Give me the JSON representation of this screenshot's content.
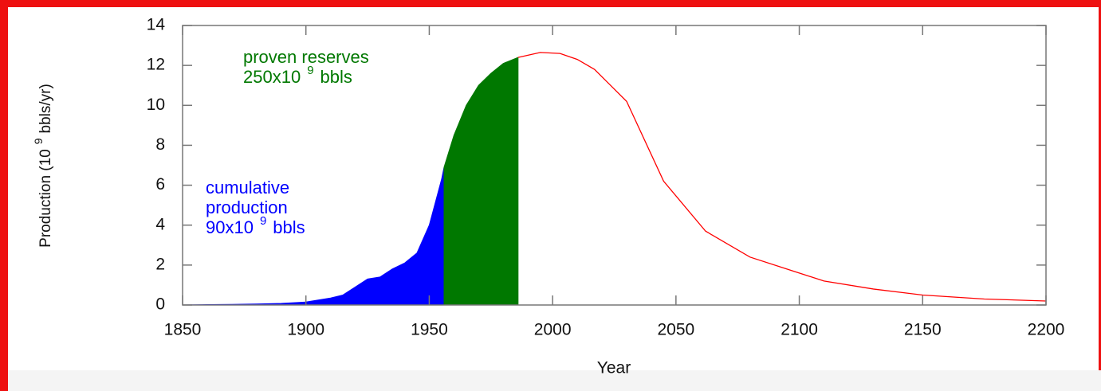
{
  "chart_data": {
    "type": "area",
    "xlabel": "Year",
    "ylabel": {
      "text": "Production (10",
      "superscript": "9",
      "suffix": "bbls/yr)"
    },
    "xlim": [
      1850,
      2200
    ],
    "xticks": [
      1850,
      1900,
      1950,
      2000,
      2050,
      2100,
      2150,
      2200
    ],
    "ylim": [
      0,
      14
    ],
    "yticks": [
      0,
      2,
      4,
      6,
      8,
      10,
      12,
      14
    ],
    "series": [
      {
        "color": "#0000ff",
        "fill": true,
        "x": [
          1850,
          1860,
          1870,
          1880,
          1890,
          1900,
          1905,
          1910,
          1915,
          1920,
          1925,
          1930,
          1935,
          1940,
          1945,
          1950,
          1955,
          1956
        ],
        "values": [
          0,
          0.02,
          0.03,
          0.05,
          0.08,
          0.15,
          0.25,
          0.35,
          0.5,
          0.9,
          1.3,
          1.4,
          1.8,
          2.1,
          2.6,
          4.0,
          6.3,
          6.9
        ]
      },
      {
        "color": "#007800",
        "fill": true,
        "x": [
          1956,
          1960,
          1965,
          1970,
          1975,
          1980,
          1986
        ],
        "values": [
          6.9,
          8.5,
          10.0,
          11.0,
          11.6,
          12.1,
          12.4
        ]
      },
      {
        "color": "#ff0000",
        "fill": false,
        "x": [
          1986,
          1995,
          2003,
          2010,
          2017,
          2030,
          2045,
          2062,
          2080,
          2095,
          2110,
          2130,
          2150,
          2175,
          2200
        ],
        "values": [
          12.4,
          12.65,
          12.6,
          12.3,
          11.8,
          10.2,
          6.2,
          3.7,
          2.4,
          1.8,
          1.2,
          0.8,
          0.5,
          0.3,
          0.2
        ]
      }
    ],
    "annotations": [
      {
        "color": "#0000ff",
        "lines": [
          "cumulative",
          "production",
          "90x10"
        ],
        "superscript": "9",
        "suffix": "bbls"
      },
      {
        "color": "#007800",
        "lines": [
          "proven reserves",
          "250x10"
        ],
        "superscript": "9",
        "suffix": "bbls"
      }
    ]
  }
}
